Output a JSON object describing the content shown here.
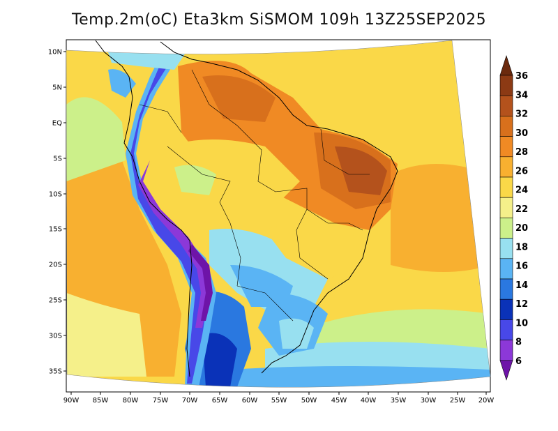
{
  "title": "Temp.2m(oC) Eta3km SiSMOM 109h 13Z25SEP2025",
  "map": {
    "x_axis_labels": [
      "90W",
      "85W",
      "80W",
      "75W",
      "70W",
      "65W",
      "60W",
      "55W",
      "50W",
      "45W",
      "40W",
      "35W",
      "30W",
      "25W",
      "20W"
    ],
    "y_axis_labels": [
      "10N",
      "5N",
      "EQ",
      "5S",
      "10S",
      "15S",
      "20S",
      "25S",
      "30S",
      "35S"
    ]
  },
  "colorbar": {
    "labels": [
      "36",
      "34",
      "32",
      "30",
      "28",
      "26",
      "24",
      "22",
      "20",
      "18",
      "16",
      "14",
      "12",
      "10",
      "8",
      "6"
    ],
    "colors": [
      "#6b2a0e",
      "#8c3a14",
      "#b4521c",
      "#d8701c",
      "#f08a24",
      "#f8b030",
      "#fad848",
      "#f5f08a",
      "#ccf08a",
      "#98e0f0",
      "#5ab4f4",
      "#2a78e0",
      "#0a32b8",
      "#4848e8",
      "#8c38d8",
      "#6e14a8"
    ]
  }
}
